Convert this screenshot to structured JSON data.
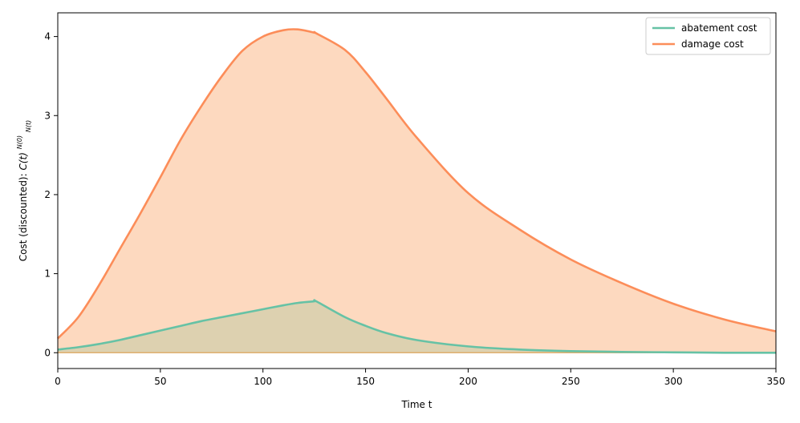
{
  "chart_data": {
    "type": "area",
    "xlabel": "Time t",
    "ylabel": "Cost (discounted):",
    "ylabel_math": "C(t)",
    "ylabel_frac_num": "N(0)",
    "ylabel_frac_den": "N(t)",
    "xlim": [
      0,
      350
    ],
    "ylim": [
      -0.2,
      4.3
    ],
    "xticks": [
      0,
      50,
      100,
      150,
      200,
      250,
      300,
      350
    ],
    "yticks": [
      0,
      1,
      2,
      3,
      4
    ],
    "grid": false,
    "legend_position": "top-right",
    "x": [
      0,
      10,
      20,
      30,
      40,
      50,
      60,
      70,
      80,
      90,
      100,
      110,
      117,
      125,
      126,
      140,
      150,
      160,
      175,
      200,
      225,
      250,
      275,
      300,
      325,
      350
    ],
    "series": [
      {
        "name": "abatement cost",
        "color": "#66c2a5",
        "fill": "#d9cfae",
        "values": [
          0.04,
          0.07,
          0.11,
          0.16,
          0.22,
          0.28,
          0.34,
          0.4,
          0.45,
          0.5,
          0.55,
          0.6,
          0.63,
          0.65,
          0.65,
          0.45,
          0.34,
          0.25,
          0.16,
          0.08,
          0.04,
          0.02,
          0.01,
          0.005,
          0.0,
          0.0
        ]
      },
      {
        "name": "damage cost",
        "color": "#fc8d59",
        "fill": "#fdd9bf",
        "values": [
          0.18,
          0.45,
          0.85,
          1.3,
          1.75,
          2.22,
          2.7,
          3.12,
          3.5,
          3.82,
          4.0,
          4.08,
          4.09,
          4.05,
          4.04,
          3.83,
          3.55,
          3.22,
          2.72,
          2.02,
          1.56,
          1.18,
          0.88,
          0.62,
          0.42,
          0.27
        ]
      }
    ]
  }
}
